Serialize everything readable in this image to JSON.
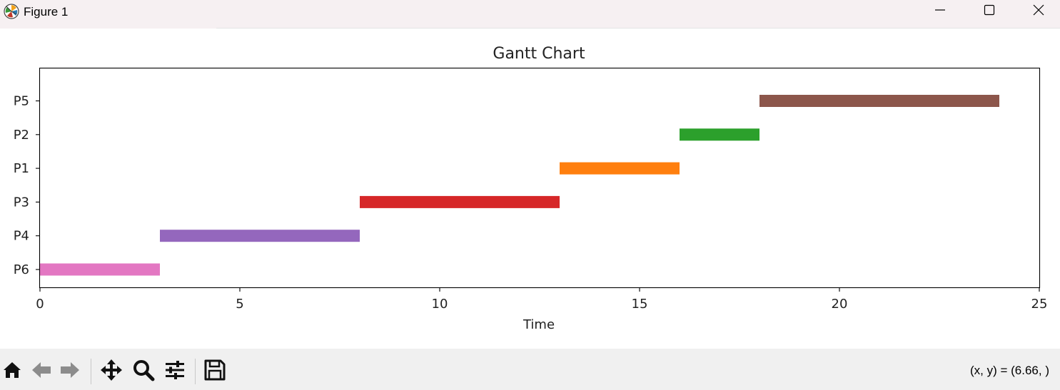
{
  "window": {
    "title": "Figure 1"
  },
  "toolbar": {
    "buttons": [
      {
        "name": "home",
        "icon": "home-icon"
      },
      {
        "name": "back",
        "icon": "back-arrow-icon"
      },
      {
        "name": "forward",
        "icon": "forward-arrow-icon"
      },
      {
        "name": "pan",
        "icon": "move-icon"
      },
      {
        "name": "zoom",
        "icon": "zoom-icon"
      },
      {
        "name": "configure-subplots",
        "icon": "sliders-icon"
      },
      {
        "name": "save",
        "icon": "save-icon"
      }
    ],
    "coords": "(x, y) = (6.66, )"
  },
  "chart_data": {
    "type": "bar",
    "orientation": "horizontal",
    "title": "Gantt Chart",
    "xlabel": "Time",
    "ylabel": "",
    "xlim": [
      0,
      25
    ],
    "xticks": [
      0,
      5,
      10,
      15,
      20,
      25
    ],
    "categories": [
      "P6",
      "P4",
      "P3",
      "P1",
      "P2",
      "P5"
    ],
    "bars": [
      {
        "task": "P6",
        "start": 0,
        "end": 3,
        "color": "#e377c2"
      },
      {
        "task": "P4",
        "start": 3,
        "end": 8,
        "color": "#9467bd"
      },
      {
        "task": "P3",
        "start": 8,
        "end": 13,
        "color": "#d62728"
      },
      {
        "task": "P1",
        "start": 13,
        "end": 16,
        "color": "#ff7f0e"
      },
      {
        "task": "P2",
        "start": 16,
        "end": 18,
        "color": "#2ca02c"
      },
      {
        "task": "P5",
        "start": 18,
        "end": 24,
        "color": "#8c564b"
      }
    ],
    "grid": false,
    "legend": "none"
  }
}
